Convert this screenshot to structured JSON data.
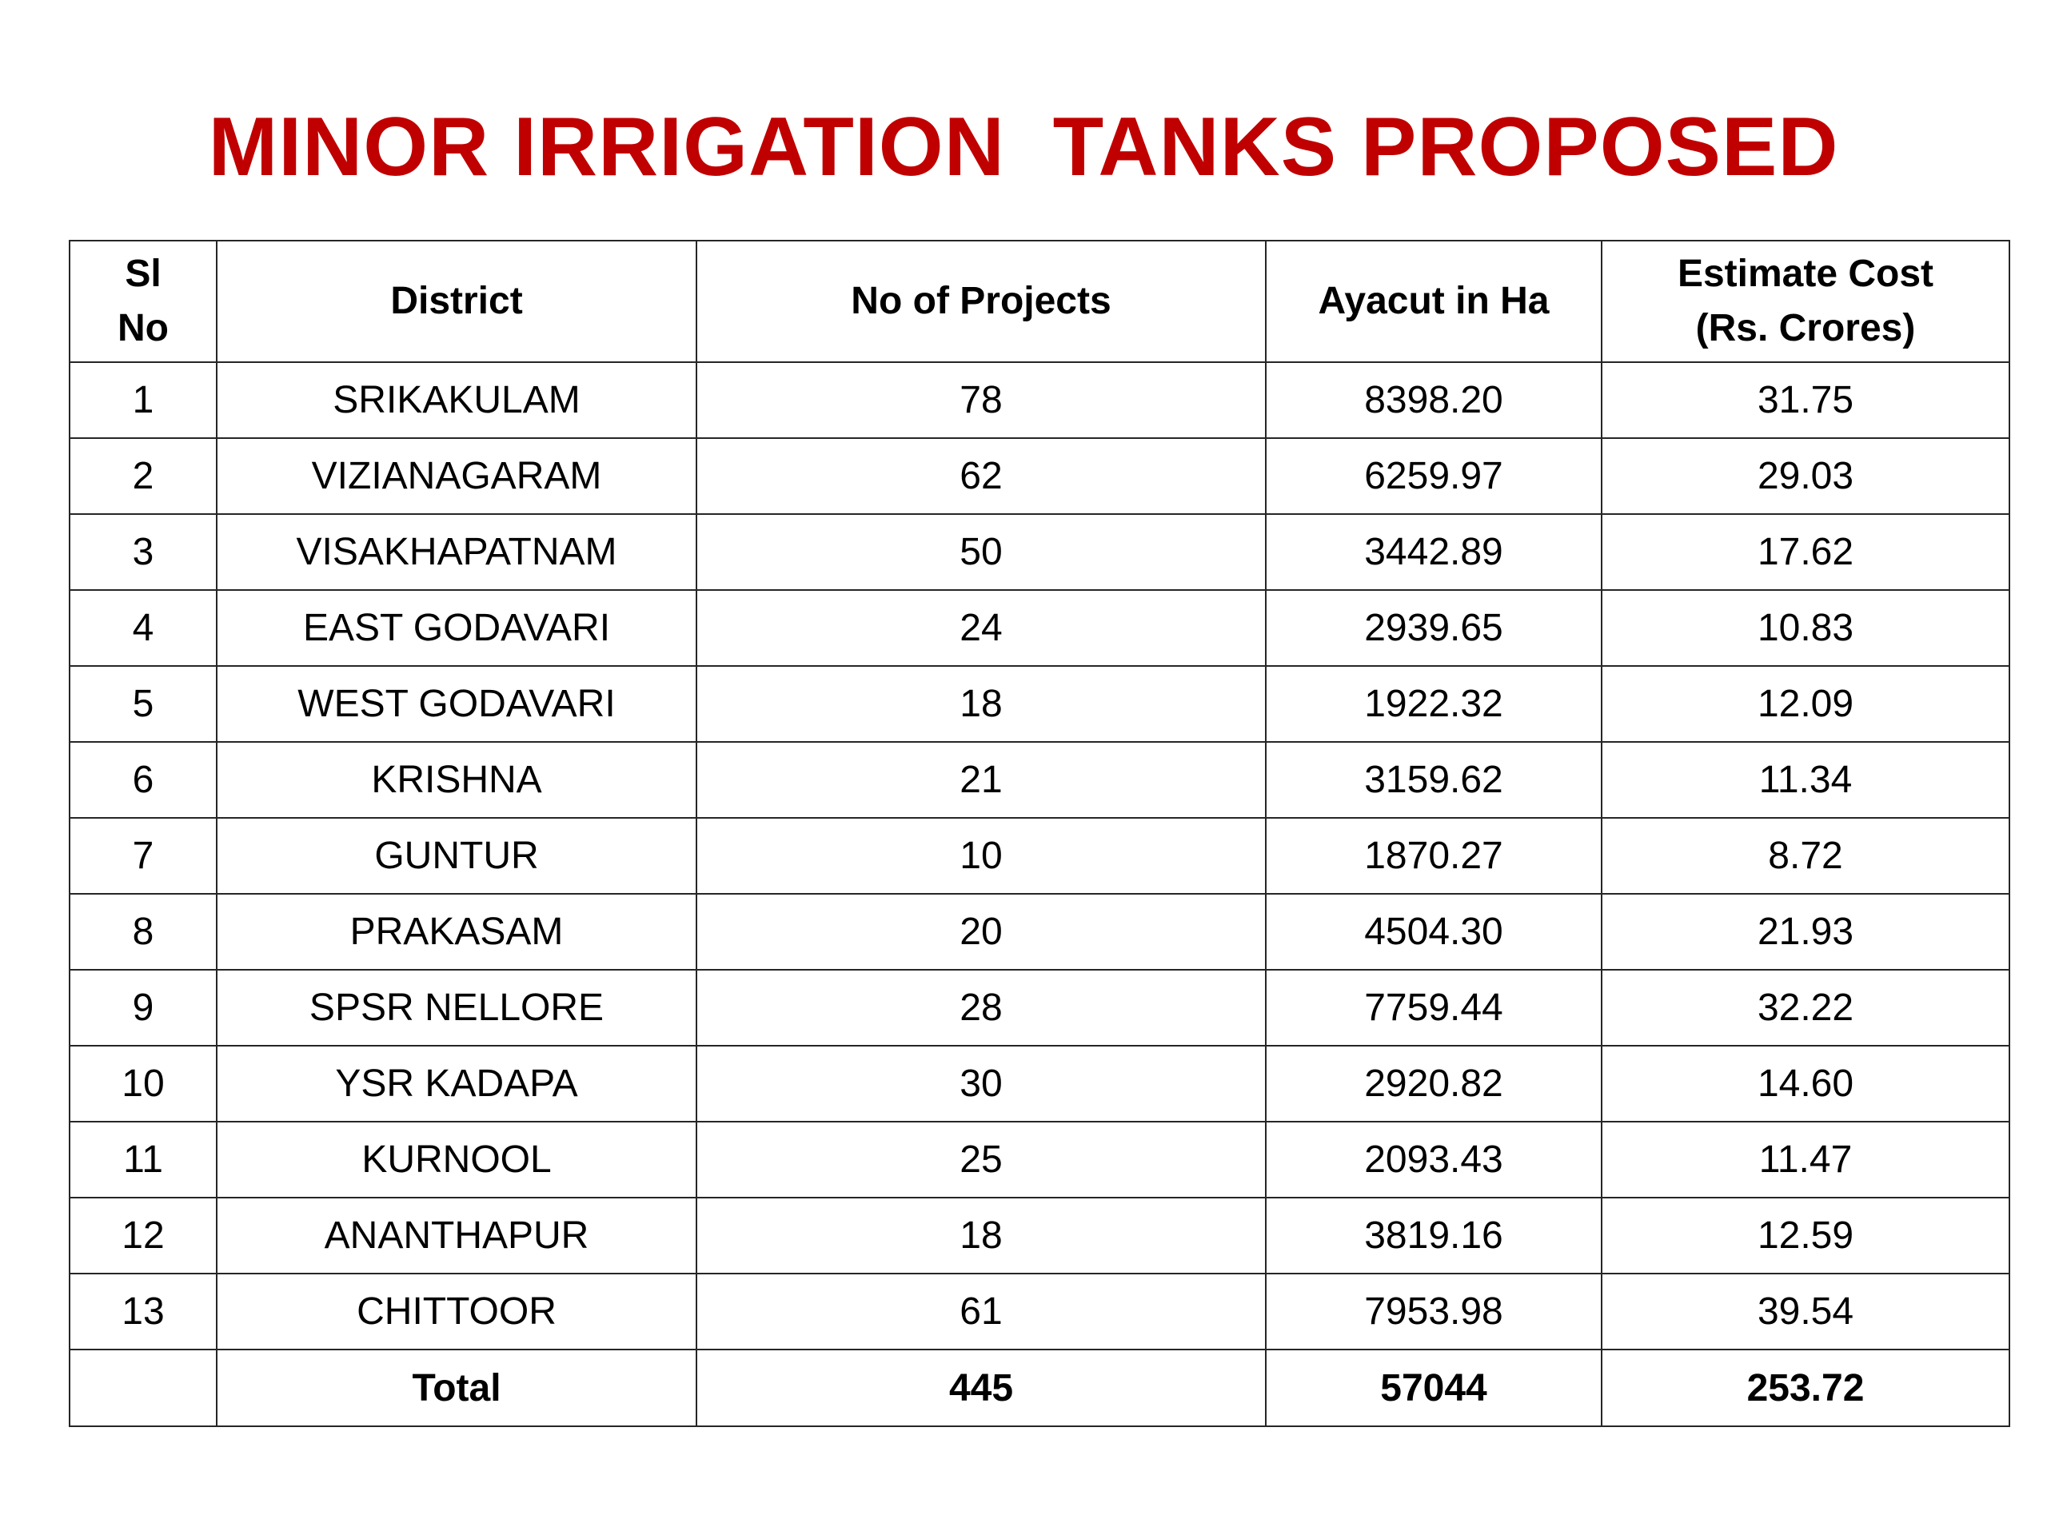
{
  "title": "MINOR IRRIGATION  TANKS PROPOSED",
  "table": {
    "headers": {
      "sl_no_line1": "Sl",
      "sl_no_line2": "No",
      "district": "District",
      "projects": "No of Projects",
      "ayacut": "Ayacut in Ha",
      "cost_line1": "Estimate Cost",
      "cost_line2": "(Rs. Crores)"
    },
    "rows": [
      {
        "sl": "1",
        "district": "SRIKAKULAM",
        "projects": "78",
        "ayacut": "8398.20",
        "cost": "31.75"
      },
      {
        "sl": "2",
        "district": "VIZIANAGARAM",
        "projects": "62",
        "ayacut": "6259.97",
        "cost": "29.03"
      },
      {
        "sl": "3",
        "district": "VISAKHAPATNAM",
        "projects": "50",
        "ayacut": "3442.89",
        "cost": "17.62"
      },
      {
        "sl": "4",
        "district": "EAST GODAVARI",
        "projects": "24",
        "ayacut": "2939.65",
        "cost": "10.83"
      },
      {
        "sl": "5",
        "district": "WEST GODAVARI",
        "projects": "18",
        "ayacut": "1922.32",
        "cost": "12.09"
      },
      {
        "sl": "6",
        "district": "KRISHNA",
        "projects": "21",
        "ayacut": "3159.62",
        "cost": "11.34"
      },
      {
        "sl": "7",
        "district": "GUNTUR",
        "projects": "10",
        "ayacut": "1870.27",
        "cost": "8.72"
      },
      {
        "sl": "8",
        "district": "PRAKASAM",
        "projects": "20",
        "ayacut": "4504.30",
        "cost": "21.93"
      },
      {
        "sl": "9",
        "district": "SPSR NELLORE",
        "projects": "28",
        "ayacut": "7759.44",
        "cost": "32.22"
      },
      {
        "sl": "10",
        "district": "YSR KADAPA",
        "projects": "30",
        "ayacut": "2920.82",
        "cost": "14.60"
      },
      {
        "sl": "11",
        "district": "KURNOOL",
        "projects": "25",
        "ayacut": "2093.43",
        "cost": "11.47"
      },
      {
        "sl": "12",
        "district": "ANANTHAPUR",
        "projects": "18",
        "ayacut": "3819.16",
        "cost": "12.59"
      },
      {
        "sl": "13",
        "district": "CHITTOOR",
        "projects": "61",
        "ayacut": "7953.98",
        "cost": "39.54"
      }
    ],
    "total": {
      "sl": "",
      "label": "Total",
      "projects": "445",
      "ayacut": "57044",
      "cost": "253.72"
    }
  },
  "colors": {
    "title": "#c00000",
    "border": "#262626",
    "text": "#000000",
    "background": "#ffffff"
  }
}
